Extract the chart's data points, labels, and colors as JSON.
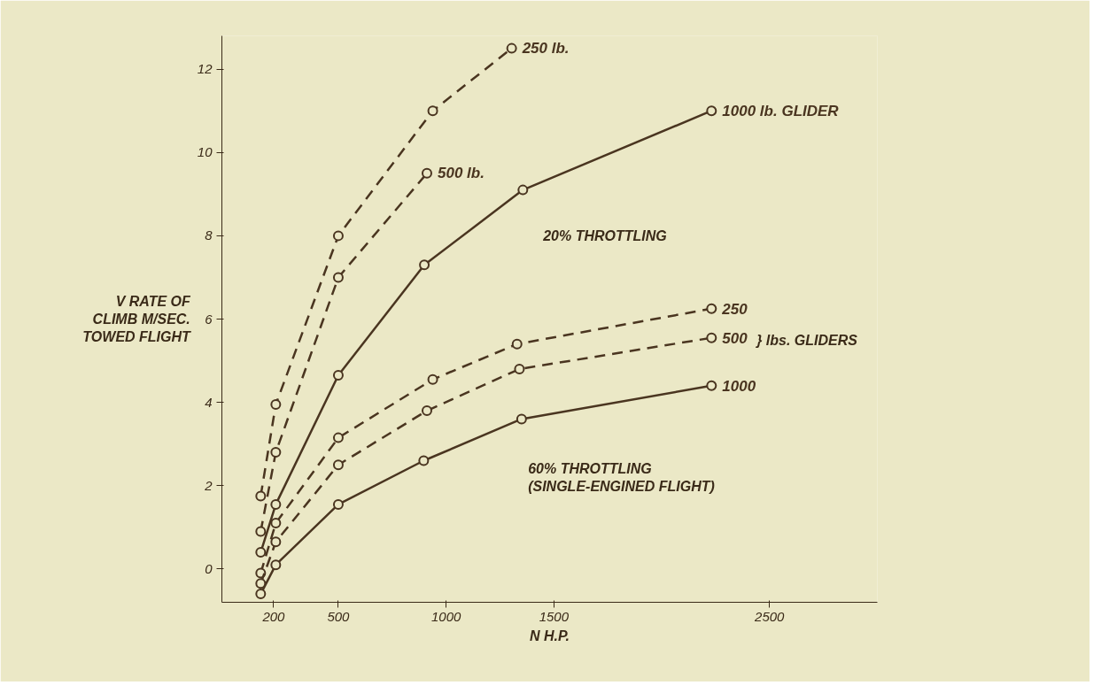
{
  "chart_data": {
    "type": "line",
    "xlabel": "N H.P.",
    "ylabel": "V RATE OF\nCLIMB M/SEC.\nTOWED FLIGHT",
    "xlim": [
      -40,
      3000
    ],
    "ylim": [
      -0.8,
      12.8
    ],
    "xticks": [
      200,
      500,
      1000,
      1500,
      2500
    ],
    "yticks": [
      0,
      2,
      4,
      6,
      8,
      10,
      12
    ],
    "grid": false,
    "marker": "circle",
    "series": [
      {
        "name": "250 lb.",
        "color": "#4a3520",
        "line_style": "dashed",
        "x": [
          140,
          210,
          500,
          938,
          1304
        ],
        "values": [
          1.75,
          3.95,
          8.0,
          11.0,
          12.5
        ]
      },
      {
        "name": "500 lb.",
        "color": "#4a3520",
        "line_style": "dashed",
        "x": [
          140,
          210,
          500,
          911
        ],
        "values": [
          0.9,
          2.8,
          7.0,
          9.5
        ]
      },
      {
        "name": "1000 lb. GLIDER",
        "color": "#4a3520",
        "line_style": "solid",
        "x": [
          140,
          210,
          500,
          899,
          1356,
          2231
        ],
        "values": [
          0.4,
          1.55,
          4.65,
          7.3,
          9.1,
          11.0
        ]
      },
      {
        "name": "250",
        "color": "#4a3520",
        "line_style": "dashed",
        "x": [
          140,
          210,
          500,
          938,
          1329,
          2231
        ],
        "values": [
          -0.1,
          1.1,
          3.15,
          4.55,
          5.4,
          6.25
        ]
      },
      {
        "name": "500",
        "color": "#4a3520",
        "line_style": "dashed",
        "x": [
          140,
          210,
          500,
          911,
          1340,
          2231
        ],
        "values": [
          -0.35,
          0.65,
          2.5,
          3.8,
          4.8,
          5.55
        ]
      },
      {
        "name": "1000",
        "color": "#4a3520",
        "line_style": "solid",
        "x": [
          140,
          210,
          500,
          896,
          1350,
          2231
        ],
        "values": [
          -0.6,
          0.1,
          1.55,
          2.6,
          3.6,
          4.4
        ]
      }
    ],
    "annotations": [
      "20% THROTTLING",
      "60% THROTTLING\n(SINGLE-ENGINED FLIGHT)",
      "} lbs. GLIDERS"
    ]
  }
}
